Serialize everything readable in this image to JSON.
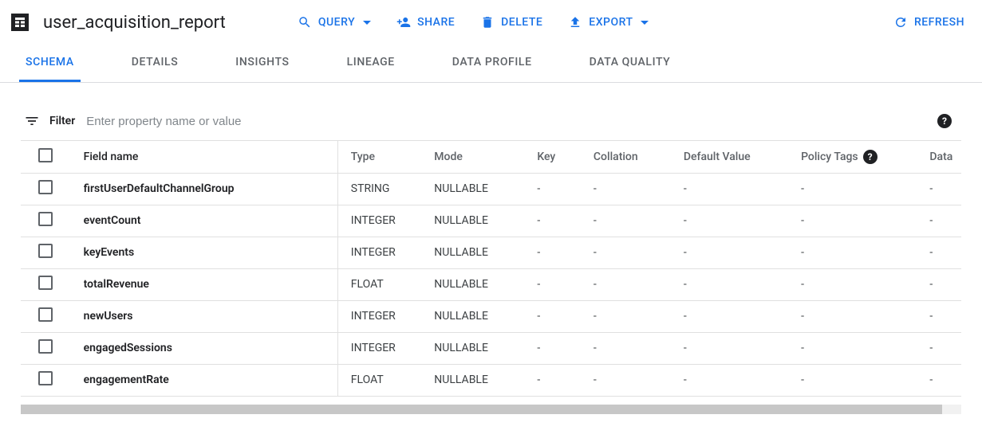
{
  "header": {
    "title": "user_acquisition_report",
    "actions": {
      "query": {
        "label": "QUERY",
        "has_dropdown": true
      },
      "share": {
        "label": "SHARE",
        "has_dropdown": false
      },
      "delete": {
        "label": "DELETE",
        "has_dropdown": false
      },
      "export": {
        "label": "EXPORT",
        "has_dropdown": true
      },
      "refresh": {
        "label": "REFRESH",
        "has_dropdown": false
      }
    }
  },
  "colors": {
    "accent": "#1a73e8",
    "text_primary": "#202124",
    "text_secondary": "#5f6368",
    "border": "#e0e0e0"
  },
  "tabs": [
    {
      "id": "schema",
      "label": "SCHEMA",
      "active": true
    },
    {
      "id": "details",
      "label": "DETAILS",
      "active": false
    },
    {
      "id": "insights",
      "label": "INSIGHTS",
      "active": false
    },
    {
      "id": "lineage",
      "label": "LINEAGE",
      "active": false
    },
    {
      "id": "data-profile",
      "label": "DATA PROFILE",
      "active": false
    },
    {
      "id": "data-quality",
      "label": "DATA QUALITY",
      "active": false
    }
  ],
  "filter": {
    "label": "Filter",
    "placeholder": "Enter property name or value"
  },
  "schema_table": {
    "columns": {
      "field_name": "Field name",
      "type": "Type",
      "mode": "Mode",
      "key": "Key",
      "collation": "Collation",
      "default_value": "Default Value",
      "policy_tags": "Policy Tags",
      "data": "Data"
    },
    "rows": [
      {
        "name": "firstUserDefaultChannelGroup",
        "type": "STRING",
        "mode": "NULLABLE",
        "key": "-",
        "collation": "-",
        "default": "-",
        "tags": "-",
        "data": "-"
      },
      {
        "name": "eventCount",
        "type": "INTEGER",
        "mode": "NULLABLE",
        "key": "-",
        "collation": "-",
        "default": "-",
        "tags": "-",
        "data": "-"
      },
      {
        "name": "keyEvents",
        "type": "INTEGER",
        "mode": "NULLABLE",
        "key": "-",
        "collation": "-",
        "default": "-",
        "tags": "-",
        "data": "-"
      },
      {
        "name": "totalRevenue",
        "type": "FLOAT",
        "mode": "NULLABLE",
        "key": "-",
        "collation": "-",
        "default": "-",
        "tags": "-",
        "data": "-"
      },
      {
        "name": "newUsers",
        "type": "INTEGER",
        "mode": "NULLABLE",
        "key": "-",
        "collation": "-",
        "default": "-",
        "tags": "-",
        "data": "-"
      },
      {
        "name": "engagedSessions",
        "type": "INTEGER",
        "mode": "NULLABLE",
        "key": "-",
        "collation": "-",
        "default": "-",
        "tags": "-",
        "data": "-"
      },
      {
        "name": "engagementRate",
        "type": "FLOAT",
        "mode": "NULLABLE",
        "key": "-",
        "collation": "-",
        "default": "-",
        "tags": "-",
        "data": "-"
      }
    ]
  }
}
